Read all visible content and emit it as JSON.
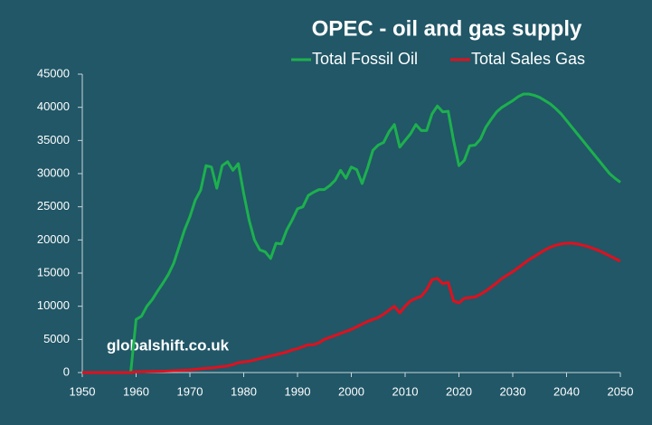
{
  "chart_data": {
    "type": "line",
    "title": "OPEC - oil and gas supply",
    "annotation": "globalshift.co.uk",
    "x": [
      1950,
      1951,
      1952,
      1953,
      1954,
      1955,
      1956,
      1957,
      1958,
      1959,
      1960,
      1961,
      1962,
      1963,
      1964,
      1965,
      1966,
      1967,
      1968,
      1969,
      1970,
      1971,
      1972,
      1973,
      1974,
      1975,
      1976,
      1977,
      1978,
      1979,
      1980,
      1981,
      1982,
      1983,
      1984,
      1985,
      1986,
      1987,
      1988,
      1989,
      1990,
      1991,
      1992,
      1993,
      1994,
      1995,
      1996,
      1997,
      1998,
      1999,
      2000,
      2001,
      2002,
      2003,
      2004,
      2005,
      2006,
      2007,
      2008,
      2009,
      2010,
      2011,
      2012,
      2013,
      2014,
      2015,
      2016,
      2017,
      2018,
      2019,
      2020,
      2021,
      2022,
      2023,
      2024,
      2025,
      2026,
      2027,
      2028,
      2029,
      2030,
      2031,
      2032,
      2033,
      2034,
      2035,
      2036,
      2037,
      2038,
      2039,
      2040,
      2041,
      2042,
      2043,
      2044,
      2045,
      2046,
      2047,
      2048,
      2049,
      2050
    ],
    "series": [
      {
        "name": "Total Fossil Oil",
        "color": "#1db04e",
        "values": [
          0,
          0,
          0,
          0,
          0,
          0,
          0,
          0,
          0,
          0,
          8000,
          8500,
          10000,
          11000,
          12300,
          13500,
          14800,
          16500,
          19000,
          21500,
          23500,
          26000,
          27500,
          31200,
          31000,
          27800,
          31200,
          31800,
          30500,
          31500,
          27000,
          23000,
          20000,
          18500,
          18200,
          17200,
          19500,
          19400,
          21500,
          23000,
          24700,
          25000,
          26700,
          27200,
          27600,
          27600,
          28200,
          29000,
          30500,
          29300,
          31000,
          30600,
          28500,
          30800,
          33500,
          34300,
          34700,
          36300,
          37400,
          34000,
          35000,
          36000,
          37400,
          36500,
          36500,
          39000,
          40200,
          39300,
          39400,
          35000,
          31200,
          32000,
          34200,
          34300,
          35200,
          37000,
          38200,
          39300,
          40000,
          40500,
          41000,
          41600,
          42000,
          42000,
          41800,
          41500,
          41000,
          40500,
          39800,
          39000,
          38000,
          37000,
          36000,
          35000,
          34000,
          33000,
          32000,
          31000,
          30000,
          29300,
          28700
        ]
      },
      {
        "name": "Total Sales Gas",
        "color": "#e0101e",
        "values": [
          0,
          0,
          0,
          0,
          0,
          0,
          0,
          0,
          0,
          0,
          100,
          120,
          150,
          170,
          190,
          200,
          230,
          270,
          310,
          350,
          400,
          480,
          560,
          640,
          700,
          800,
          900,
          1000,
          1200,
          1500,
          1600,
          1700,
          1900,
          2100,
          2300,
          2500,
          2700,
          2900,
          3100,
          3400,
          3600,
          3900,
          4200,
          4200,
          4500,
          5000,
          5300,
          5600,
          5900,
          6200,
          6500,
          6900,
          7300,
          7700,
          8000,
          8300,
          8800,
          9400,
          10000,
          9000,
          10000,
          10800,
          11200,
          11500,
          12500,
          14000,
          14200,
          13400,
          13600,
          10800,
          10500,
          11200,
          11300,
          11400,
          11800,
          12300,
          12900,
          13500,
          14200,
          14700,
          15200,
          15800,
          16400,
          17000,
          17500,
          18000,
          18500,
          18900,
          19200,
          19400,
          19500,
          19500,
          19400,
          19200,
          19000,
          18700,
          18400,
          18000,
          17600,
          17200,
          16800
        ]
      }
    ],
    "xlim": [
      1950,
      2050
    ],
    "xticks": [
      1950,
      1960,
      1970,
      1980,
      1990,
      2000,
      2010,
      2020,
      2030,
      2040,
      2050
    ],
    "ylim": [
      0,
      45000
    ],
    "yticks": [
      0,
      5000,
      10000,
      15000,
      20000,
      25000,
      30000,
      35000,
      40000,
      45000
    ],
    "grid": false
  }
}
